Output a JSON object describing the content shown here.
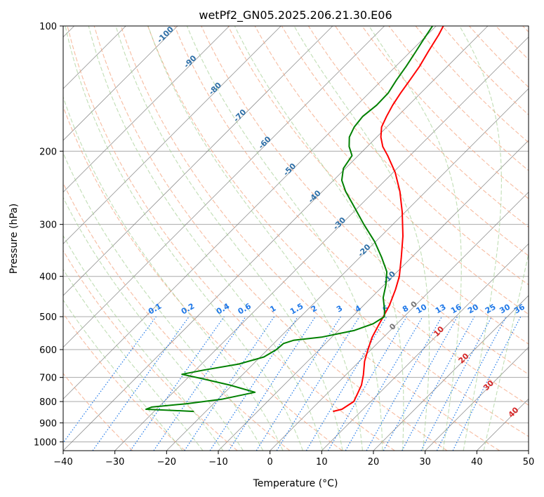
{
  "chart_data": {
    "type": "line",
    "subtype": "skew-T log-p diagram",
    "title": "wetPf2_GN05.2025.206.21.30.E06",
    "xlabel": "Temperature (°C)",
    "ylabel": "Pressure (hPa)",
    "xlim": [
      -40,
      50
    ],
    "ylim": [
      1050,
      100
    ],
    "y_scale": "log",
    "grid": true,
    "x_ticks": [
      -40,
      -30,
      -20,
      -10,
      0,
      10,
      20,
      30,
      40,
      50
    ],
    "x_tick_labels": [
      "−40",
      "−30",
      "−20",
      "−10",
      "0",
      "10",
      "20",
      "30",
      "40",
      "50"
    ],
    "y_ticks": [
      100,
      200,
      300,
      400,
      500,
      600,
      700,
      800,
      900,
      1000
    ],
    "y_tick_labels": [
      "100",
      "200",
      "300",
      "400",
      "500",
      "600",
      "700",
      "800",
      "900",
      "1000"
    ],
    "dry_adiabat_labels": [
      "-100",
      "-90",
      "-80",
      "-70",
      "-60",
      "-50",
      "-40",
      "-30",
      "-20",
      "-10",
      "0",
      "10",
      "20",
      "30",
      "40"
    ],
    "moist_adiabat_labels": [
      "0"
    ],
    "mixing_ratio_labels": [
      "0.1",
      "0.2",
      "0.4",
      "0.6",
      "1",
      "1.5",
      "2",
      "3",
      "4",
      "6",
      "8",
      "10",
      "13",
      "16",
      "20",
      "25",
      "30",
      "36"
    ],
    "series": [
      {
        "role": "temperature",
        "color": "#ff0000",
        "points": [
          {
            "p": 845,
            "t": 4.6
          },
          {
            "p": 835,
            "t": 5.9
          },
          {
            "p": 800,
            "t": 6.7
          },
          {
            "p": 770,
            "t": 6.0
          },
          {
            "p": 730,
            "t": 5.0
          },
          {
            "p": 690,
            "t": 3.4
          },
          {
            "p": 640,
            "t": 1.0
          },
          {
            "p": 600,
            "t": -0.6
          },
          {
            "p": 560,
            "t": -2.2
          },
          {
            "p": 520,
            "t": -3.4
          },
          {
            "p": 500,
            "t": -4.0
          },
          {
            "p": 470,
            "t": -5.0
          },
          {
            "p": 430,
            "t": -6.9
          },
          {
            "p": 400,
            "t": -8.7
          },
          {
            "p": 360,
            "t": -12.0
          },
          {
            "p": 320,
            "t": -15.8
          },
          {
            "p": 280,
            "t": -20.6
          },
          {
            "p": 250,
            "t": -25.0
          },
          {
            "p": 225,
            "t": -29.6
          },
          {
            "p": 205,
            "t": -34.3
          },
          {
            "p": 195,
            "t": -37.0
          },
          {
            "p": 185,
            "t": -39.2
          },
          {
            "p": 175,
            "t": -41.0
          },
          {
            "p": 165,
            "t": -42.1
          },
          {
            "p": 155,
            "t": -43.1
          },
          {
            "p": 145,
            "t": -43.9
          },
          {
            "p": 135,
            "t": -44.6
          },
          {
            "p": 125,
            "t": -45.4
          },
          {
            "p": 115,
            "t": -46.6
          },
          {
            "p": 105,
            "t": -47.8
          },
          {
            "p": 100,
            "t": -48.6
          }
        ]
      },
      {
        "role": "dewpoint",
        "color": "#008000",
        "points": [
          {
            "p": 845,
            "t": -22.3
          },
          {
            "p": 840,
            "t": -26.8
          },
          {
            "p": 835,
            "t": -32.0
          },
          {
            "p": 825,
            "t": -31.3
          },
          {
            "p": 810,
            "t": -25.3
          },
          {
            "p": 790,
            "t": -19.3
          },
          {
            "p": 760,
            "t": -14.2
          },
          {
            "p": 730,
            "t": -20.5
          },
          {
            "p": 705,
            "t": -27.0
          },
          {
            "p": 688,
            "t": -31.8
          },
          {
            "p": 672,
            "t": -28.4
          },
          {
            "p": 650,
            "t": -22.8
          },
          {
            "p": 625,
            "t": -19.3
          },
          {
            "p": 600,
            "t": -18.3
          },
          {
            "p": 580,
            "t": -18.1
          },
          {
            "p": 570,
            "t": -16.8
          },
          {
            "p": 560,
            "t": -12.0
          },
          {
            "p": 540,
            "t": -7.0
          },
          {
            "p": 520,
            "t": -4.6
          },
          {
            "p": 500,
            "t": -3.8
          },
          {
            "p": 480,
            "t": -5.2
          },
          {
            "p": 450,
            "t": -7.7
          },
          {
            "p": 420,
            "t": -9.6
          },
          {
            "p": 390,
            "t": -12.0
          },
          {
            "p": 360,
            "t": -15.8
          },
          {
            "p": 330,
            "t": -20.2
          },
          {
            "p": 300,
            "t": -25.6
          },
          {
            "p": 270,
            "t": -31.3
          },
          {
            "p": 250,
            "t": -35.5
          },
          {
            "p": 235,
            "t": -38.4
          },
          {
            "p": 220,
            "t": -40.4
          },
          {
            "p": 205,
            "t": -41.2
          },
          {
            "p": 195,
            "t": -43.5
          },
          {
            "p": 185,
            "t": -45.3
          },
          {
            "p": 175,
            "t": -46.3
          },
          {
            "p": 165,
            "t": -46.7
          },
          {
            "p": 155,
            "t": -46.2
          },
          {
            "p": 145,
            "t": -46.3
          },
          {
            "p": 135,
            "t": -47.2
          },
          {
            "p": 125,
            "t": -48.0
          },
          {
            "p": 115,
            "t": -49.0
          },
          {
            "p": 108,
            "t": -49.8
          },
          {
            "p": 100,
            "t": -50.7
          }
        ]
      }
    ]
  },
  "colors": {
    "temperature": "#ff0000",
    "dewpoint": "#008000",
    "isotherm": "#777777",
    "isobar": "#aaaaaa",
    "dry_adiabat": "#f4a582",
    "moist_adiabat": "#a6d096",
    "mixing_ratio": "#1f78e8",
    "dry_adiabat_label": "#2e6fa7",
    "warm_adiabat_label": "#d62728"
  }
}
